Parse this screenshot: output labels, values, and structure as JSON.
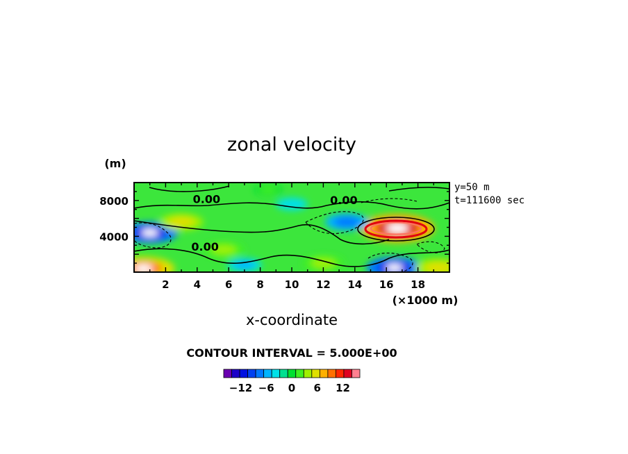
{
  "chart_data": {
    "type": "heatmap",
    "title": "zonal velocity",
    "xlabel": "x-coordinate",
    "x_unit": "(×1000 m)",
    "y_unit": "(m)",
    "x_ticks": [
      2,
      4,
      6,
      8,
      10,
      12,
      14,
      16,
      18
    ],
    "y_ticks": [
      4000,
      8000
    ],
    "xlim": [
      0,
      20
    ],
    "ylim": [
      0,
      10000
    ],
    "annotations": [
      "y=50 m",
      "t=111600 sec"
    ],
    "contour_labels": [
      {
        "text": "0.00",
        "x": 4.6,
        "y": 7700
      },
      {
        "text": "0.00",
        "x": 13.3,
        "y": 7600
      },
      {
        "text": "0.00",
        "x": 4.5,
        "y": 2400
      }
    ],
    "contour_interval_text": "CONTOUR INTERVAL = 5.000E+00",
    "colorbar": {
      "tick_labels": [
        "−12",
        "−6",
        "0",
        "6",
        "12"
      ],
      "tick_values": [
        -12,
        -6,
        0,
        6,
        12
      ],
      "levels": [
        -16,
        -14,
        -12,
        -10,
        -8,
        -6,
        -4,
        -2,
        0,
        2,
        4,
        6,
        8,
        10,
        12,
        14,
        16
      ],
      "colors": [
        "#6a00b0",
        "#1c00c8",
        "#0010e0",
        "#0040f0",
        "#0078ff",
        "#00b4ff",
        "#00e0e8",
        "#00e090",
        "#00e030",
        "#40f020",
        "#a0f000",
        "#e0e000",
        "#ffb000",
        "#ff7000",
        "#ff2800",
        "#e00020",
        "#ff8090"
      ]
    },
    "features": [
      {
        "kind": "max",
        "x": 16.7,
        "y": 4900,
        "value": 18
      },
      {
        "kind": "min",
        "x": 1.0,
        "y": 4400,
        "value": -12
      },
      {
        "kind": "min",
        "x": 13.5,
        "y": 5600,
        "value": -8
      },
      {
        "kind": "max",
        "x": 3.0,
        "y": 5600,
        "value": 8
      },
      {
        "kind": "max",
        "x": 5.7,
        "y": 2500,
        "value": 7
      },
      {
        "kind": "max",
        "x": 12.0,
        "y": 1000,
        "value": 7
      },
      {
        "kind": "min",
        "x": 16.5,
        "y": 500,
        "value": -12
      },
      {
        "kind": "max",
        "x": 0.6,
        "y": 400,
        "value": 14
      },
      {
        "kind": "max",
        "x": 19.3,
        "y": 500,
        "value": 9
      },
      {
        "kind": "max",
        "x": 8.5,
        "y": 9200,
        "value": 3
      },
      {
        "kind": "min",
        "x": 10.0,
        "y": 7600,
        "value": -4
      },
      {
        "kind": "min",
        "x": 7.0,
        "y": 800,
        "value": -5
      }
    ]
  }
}
